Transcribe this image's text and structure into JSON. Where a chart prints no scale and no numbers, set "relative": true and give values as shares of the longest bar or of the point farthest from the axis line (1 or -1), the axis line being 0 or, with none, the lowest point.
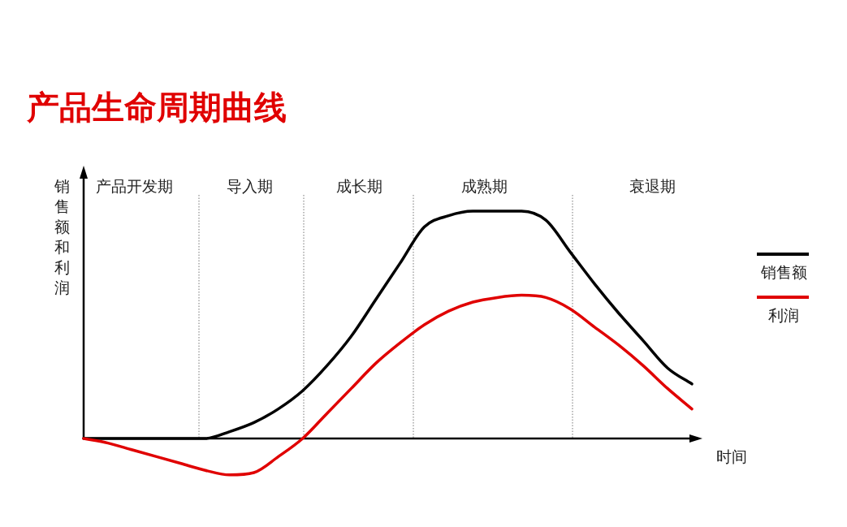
{
  "chart_data": {
    "type": "line",
    "title": "产品生命周期曲线",
    "ylabel": "销售额和利润",
    "xlabel": "时间",
    "relative": true,
    "legend": "right",
    "marker": "none",
    "line_style": "solid",
    "annotations": [
      "产品开发期",
      "导入期",
      "成长期",
      "成熟期",
      "衰退期"
    ],
    "categories": [
      null,
      null,
      null,
      null,
      null,
      null,
      null,
      null,
      null,
      null,
      null,
      null,
      null,
      null,
      null,
      null,
      null,
      null,
      null,
      null,
      null,
      null,
      null,
      null,
      null,
      null
    ],
    "series": [
      {
        "name": "销售额",
        "color": "#000000",
        "values": [
          0,
          0,
          0,
          0,
          0,
          0,
          0.03,
          0.07,
          0.13,
          0.21,
          0.32,
          0.45,
          0.61,
          0.77,
          0.93,
          0.98,
          1,
          1,
          1,
          0.96,
          0.82,
          0.68,
          0.55,
          0.43,
          0.31,
          0.24
        ]
      },
      {
        "name": "利润",
        "color": "#e00000",
        "values": [
          0,
          -0.02,
          -0.05,
          -0.08,
          -0.11,
          -0.14,
          -0.16,
          -0.15,
          -0.08,
          0,
          0.11,
          0.22,
          0.33,
          0.42,
          0.5,
          0.56,
          0.6,
          0.62,
          0.63,
          0.62,
          0.57,
          0.49,
          0.41,
          0.32,
          0.22,
          0.13
        ]
      }
    ]
  }
}
